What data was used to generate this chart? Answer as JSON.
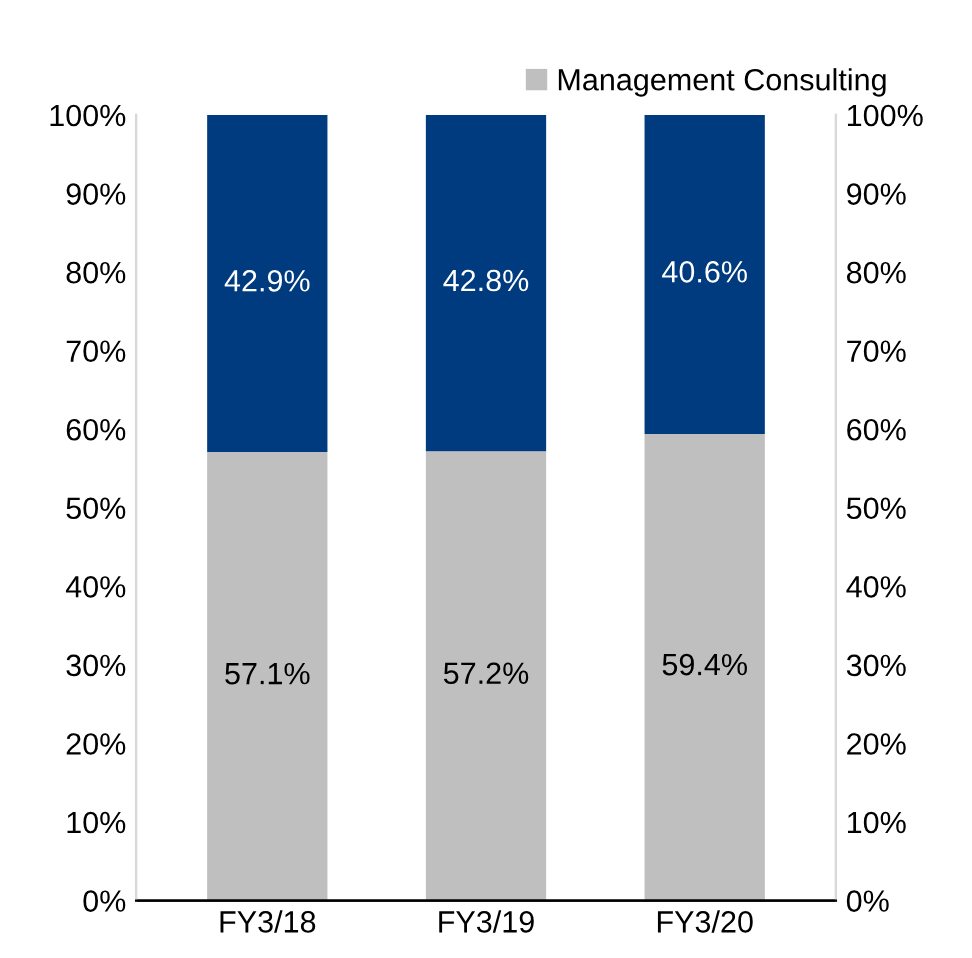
{
  "chart_data": {
    "type": "bar",
    "stacked": true,
    "categories": [
      "FY3/18",
      "FY3/19",
      "FY3/20"
    ],
    "series": [
      {
        "name": "Management Consulting",
        "color": "#bfbfbf",
        "values": [
          57.1,
          57.2,
          59.4
        ],
        "value_labels": [
          "57.1%",
          "57.2%",
          "59.4%"
        ]
      },
      {
        "color": "#003b7f",
        "values": [
          42.9,
          42.8,
          40.6
        ],
        "value_labels": [
          "42.9%",
          "42.8%",
          "40.6%"
        ]
      }
    ],
    "ylim": [
      0,
      100
    ],
    "yticks": [
      {
        "value": 0,
        "label": "0%"
      },
      {
        "value": 10,
        "label": "10%"
      },
      {
        "value": 20,
        "label": "20%"
      },
      {
        "value": 30,
        "label": "30%"
      },
      {
        "value": 40,
        "label": "40%"
      },
      {
        "value": 50,
        "label": "50%"
      },
      {
        "value": 60,
        "label": "60%"
      },
      {
        "value": 70,
        "label": "70%"
      },
      {
        "value": 80,
        "label": "80%"
      },
      {
        "value": 90,
        "label": "90%"
      },
      {
        "value": 100,
        "label": "100%"
      }
    ],
    "y2lim": [
      0,
      100
    ],
    "y2ticks": [
      {
        "value": 0,
        "label": "0%"
      },
      {
        "value": 10,
        "label": "10%"
      },
      {
        "value": 20,
        "label": "20%"
      },
      {
        "value": 30,
        "label": "30%"
      },
      {
        "value": 40,
        "label": "40%"
      },
      {
        "value": 50,
        "label": "50%"
      },
      {
        "value": 60,
        "label": "60%"
      },
      {
        "value": 70,
        "label": "70%"
      },
      {
        "value": 80,
        "label": "80%"
      },
      {
        "value": 90,
        "label": "90%"
      },
      {
        "value": 100,
        "label": "100%"
      }
    ],
    "grid": false,
    "legend": "top right"
  }
}
